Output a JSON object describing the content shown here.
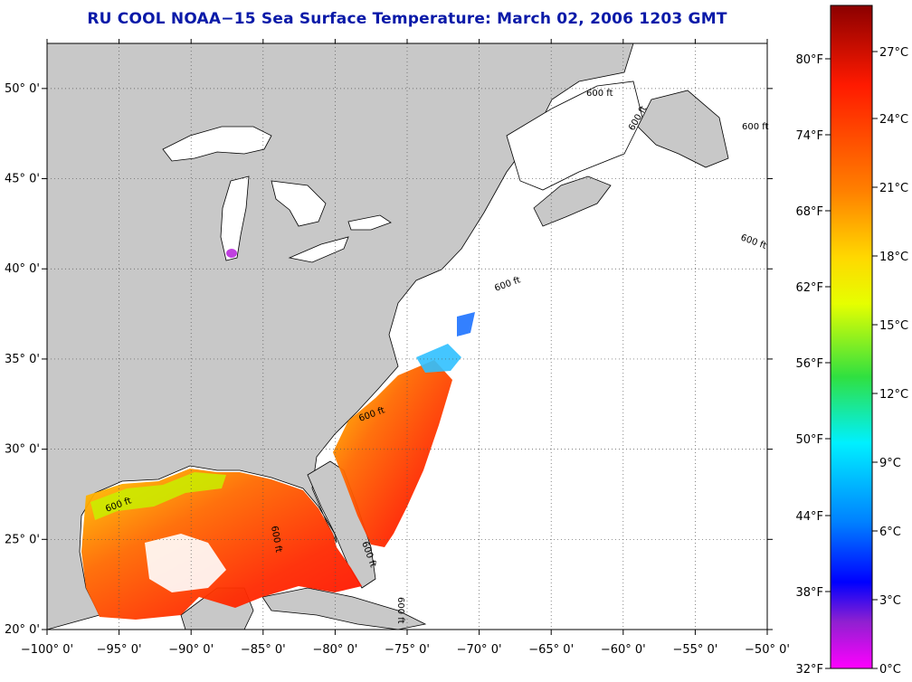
{
  "title": "RU COOL  NOAA−15  Sea Surface Temperature:  March 02, 2006 1203 GMT",
  "map": {
    "lon_range": [
      -100,
      -50
    ],
    "lat_range": [
      20,
      52.5
    ],
    "grid": "dotted",
    "lon_ticks": [
      {
        "value": -100,
        "label": "−100° 0'"
      },
      {
        "value": -95,
        "label": "−95° 0'"
      },
      {
        "value": -90,
        "label": "−90° 0'"
      },
      {
        "value": -85,
        "label": "−85° 0'"
      },
      {
        "value": -80,
        "label": "−80° 0'"
      },
      {
        "value": -75,
        "label": "−75° 0'"
      },
      {
        "value": -70,
        "label": "−70° 0'"
      },
      {
        "value": -65,
        "label": "−65° 0'"
      },
      {
        "value": -60,
        "label": "−60° 0'"
      },
      {
        "value": -55,
        "label": "−55° 0'"
      },
      {
        "value": -50,
        "label": "−50° 0'"
      }
    ],
    "lat_ticks": [
      {
        "value": 50,
        "label": "50° 0'"
      },
      {
        "value": 45,
        "label": "45° 0'"
      },
      {
        "value": 40,
        "label": "40° 0'"
      },
      {
        "value": 35,
        "label": "35° 0'"
      },
      {
        "value": 30,
        "label": "30° 0'"
      },
      {
        "value": 25,
        "label": "25° 0'"
      },
      {
        "value": 20,
        "label": "20° 0'"
      }
    ],
    "contour_labels": [
      "600 ft",
      "600 ft",
      "600 ft",
      "600 ft",
      "600 ft",
      "600 ft",
      "600 ft",
      "600 ft",
      "600 ft",
      "600 ft"
    ],
    "colors": {
      "land": "#c8c8c8",
      "ocean": "#ffffff",
      "coastline": "#000000"
    }
  },
  "colorbar": {
    "celsius_labels": [
      "27°C",
      "24°C",
      "21°C",
      "18°C",
      "15°C",
      "12°C",
      "9°C",
      "6°C",
      "3°C",
      "0°C"
    ],
    "fahrenheit_labels": [
      "80°F",
      "74°F",
      "68°F",
      "62°F",
      "56°F",
      "50°F",
      "44°F",
      "38°F",
      "32°F"
    ],
    "gradient": [
      "#8b0000",
      "#ff2000",
      "#ff8000",
      "#ffd800",
      "#e6ff00",
      "#30e040",
      "#00f0ff",
      "#0080ff",
      "#0000ff",
      "#9020d0",
      "#ff00ff"
    ]
  }
}
